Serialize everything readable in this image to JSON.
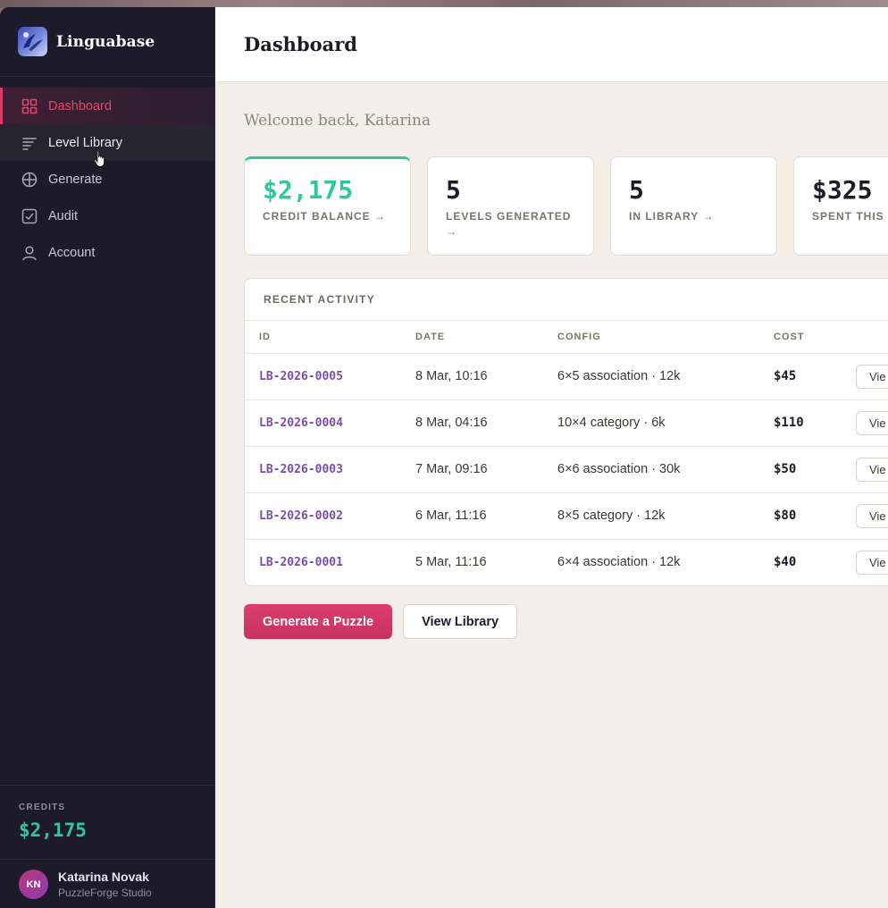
{
  "app": {
    "name": "Linguabase"
  },
  "sidebar": {
    "items": [
      {
        "label": "Dashboard",
        "icon": "grid-icon",
        "active": true
      },
      {
        "label": "Level Library",
        "icon": "list-icon",
        "hovered": true
      },
      {
        "label": "Generate",
        "icon": "plus-circle-icon"
      },
      {
        "label": "Audit",
        "icon": "check-square-icon"
      },
      {
        "label": "Account",
        "icon": "user-icon"
      }
    ],
    "credits": {
      "label": "CREDITS",
      "value": "$2,175"
    },
    "user": {
      "initials": "KN",
      "name": "Katarina Novak",
      "org": "PuzzleForge Studio"
    }
  },
  "header": {
    "title": "Dashboard"
  },
  "main": {
    "welcome": "Welcome back, Katarina",
    "stats": [
      {
        "value": "$2,175",
        "label": "CREDIT BALANCE →"
      },
      {
        "value": "5",
        "label": "LEVELS GENERATED →"
      },
      {
        "value": "5",
        "label": "IN LIBRARY →"
      },
      {
        "value": "$325",
        "label": "SPENT THIS S"
      }
    ],
    "activity": {
      "title": "RECENT ACTIVITY",
      "columns": [
        "ID",
        "DATE",
        "CONFIG",
        "COST"
      ],
      "rows": [
        {
          "id": "LB-2026-0005",
          "date": "8 Mar, 10:16",
          "config": "6×5 association · 12k",
          "cost": "$45",
          "action": "Vie"
        },
        {
          "id": "LB-2026-0004",
          "date": "8 Mar, 04:16",
          "config": "10×4 category · 6k",
          "cost": "$110",
          "action": "Vie"
        },
        {
          "id": "LB-2026-0003",
          "date": "7 Mar, 09:16",
          "config": "6×6 association · 30k",
          "cost": "$50",
          "action": "Vie"
        },
        {
          "id": "LB-2026-0002",
          "date": "6 Mar, 11:16",
          "config": "8×5 category · 12k",
          "cost": "$80",
          "action": "Vie"
        },
        {
          "id": "LB-2026-0001",
          "date": "5 Mar, 11:16",
          "config": "6×4 association · 12k",
          "cost": "$40",
          "action": "Vie"
        }
      ]
    },
    "actions": {
      "primary": "Generate a Puzzle",
      "secondary": "View Library"
    }
  },
  "colors": {
    "accent": "#d83b66",
    "credit": "#2fc79c",
    "id_link": "#7b4bb0",
    "sidebar_bg": "#1d1b29"
  }
}
